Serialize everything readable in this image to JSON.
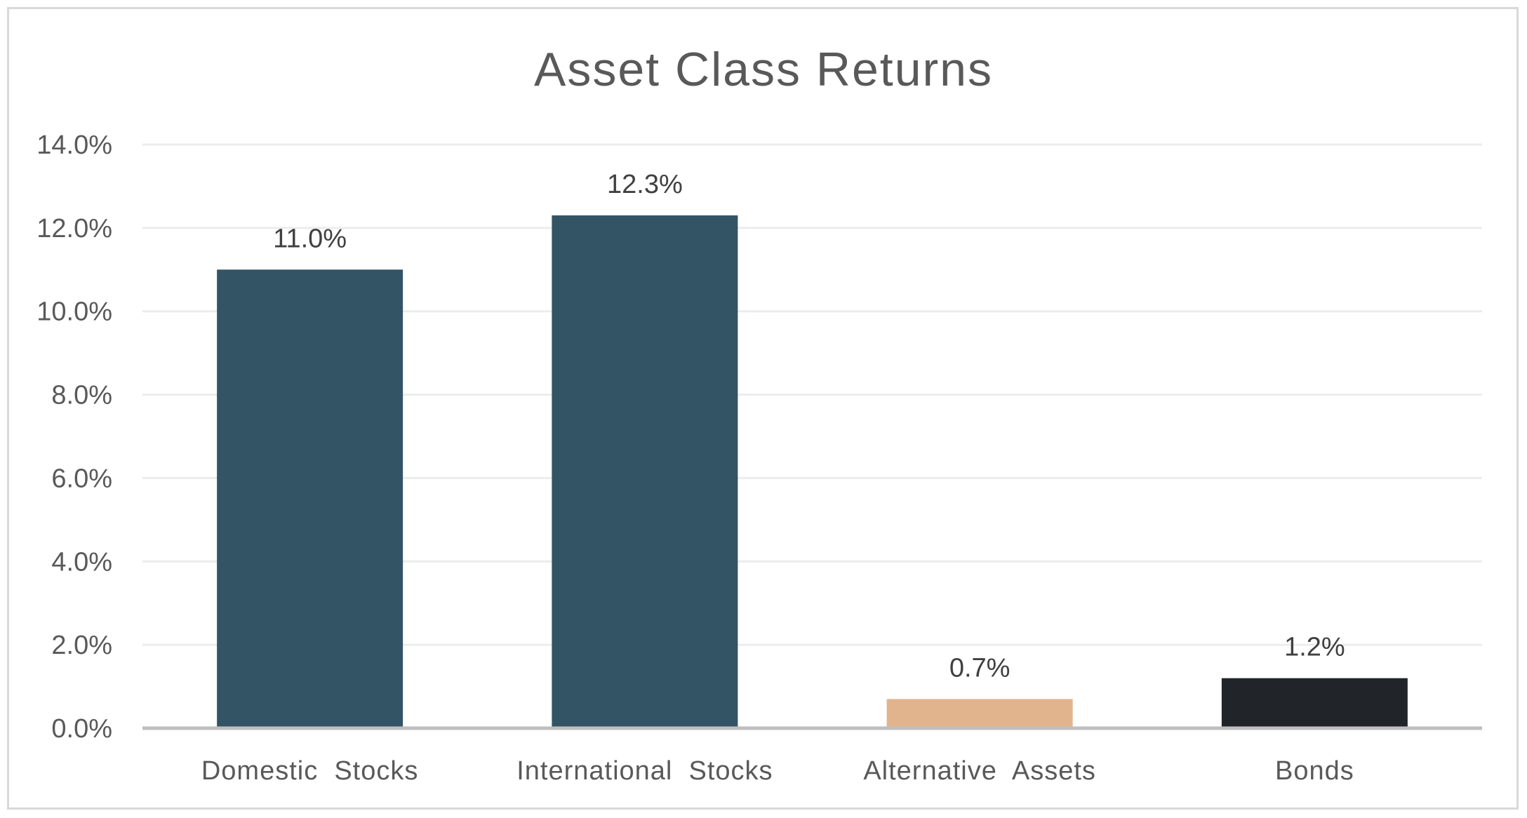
{
  "chart_data": {
    "type": "bar",
    "title": "Asset Class Returns",
    "xlabel": "",
    "ylabel": "",
    "categories": [
      "Domestic  Stocks",
      "International  Stocks",
      "Alternative  Assets",
      "Bonds"
    ],
    "values": [
      11.0,
      12.3,
      0.7,
      1.2
    ],
    "data_labels": [
      "11.0%",
      "12.3%",
      "0.7%",
      "1.2%"
    ],
    "bar_colors": [
      "#335465",
      "#335465",
      "#e2b48e",
      "#212429"
    ],
    "ylim": [
      0,
      14
    ],
    "yticks": [
      0,
      2,
      4,
      6,
      8,
      10,
      12,
      14
    ],
    "ytick_labels": [
      "0.0%",
      "2.0%",
      "4.0%",
      "6.0%",
      "8.0%",
      "10.0%",
      "12.0%",
      "14.0%"
    ],
    "grid": true,
    "legend": "none"
  }
}
